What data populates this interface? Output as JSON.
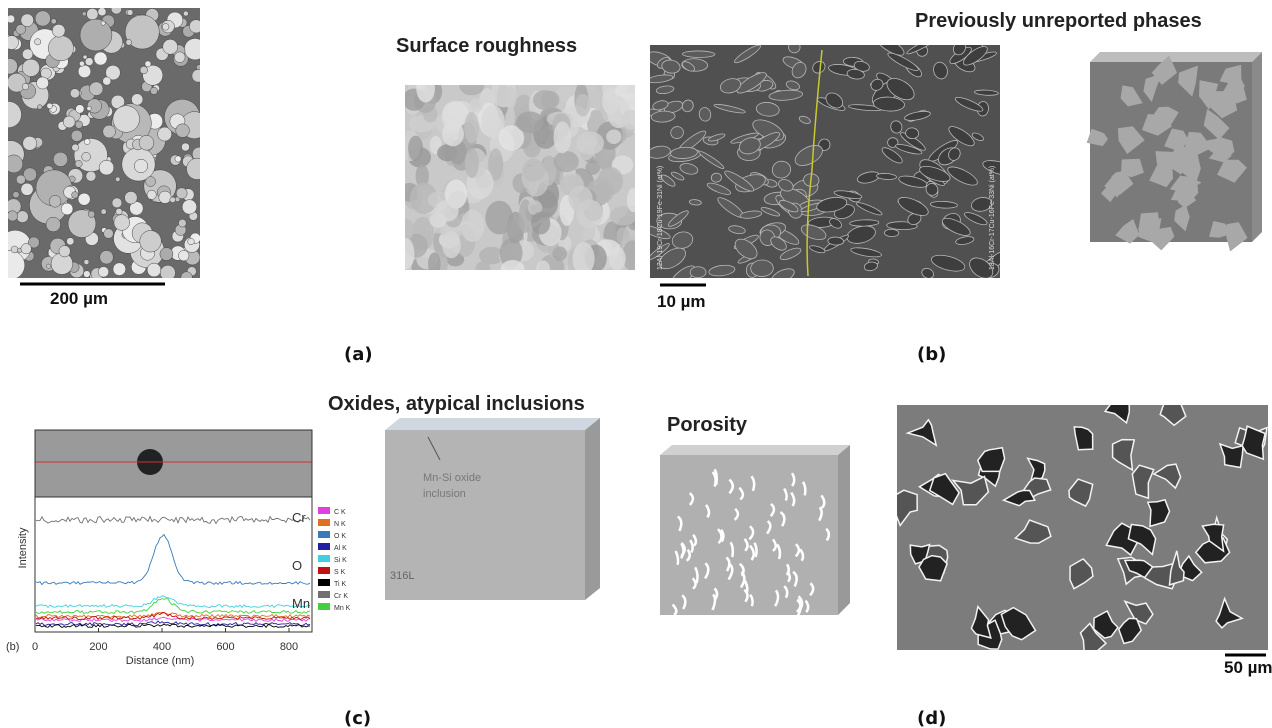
{
  "panels": [
    {
      "label": "(a)",
      "title": "Surface roughness",
      "scale_bar": "200 µm"
    },
    {
      "label": "(b)",
      "title": "Previously unreported phases",
      "scale_bar": "10 µm",
      "image_labels": [
        "12Al-19Cr-18Cu-19Fe-31Ni (at%)",
        "18Al-16Cr-17Cu-16Fe-33Ni (at%)"
      ]
    },
    {
      "label": "(c)",
      "title": "Oxides, atypical inclusions",
      "annotation": [
        "Mn-Si oxide",
        "inclusion"
      ],
      "material": "316L",
      "plot": {
        "sub_label": "(b)",
        "y_label": "Intensity",
        "x_label": "Distance (nm)",
        "x_ticks": [
          "0",
          "200",
          "400",
          "600",
          "800"
        ],
        "curve_labels": [
          "Cr",
          "O",
          "Mn"
        ],
        "legend": [
          {
            "name": "C K",
            "color": "#e040e0"
          },
          {
            "name": "N K",
            "color": "#e07020"
          },
          {
            "name": "O K",
            "color": "#3a7ab8"
          },
          {
            "name": "Al K",
            "color": "#2020a0"
          },
          {
            "name": "Si K",
            "color": "#40d0e0"
          },
          {
            "name": "S K",
            "color": "#c01010"
          },
          {
            "name": "Ti K",
            "color": "#000000"
          },
          {
            "name": "Cr K",
            "color": "#707070"
          },
          {
            "name": "Mn K",
            "color": "#40d040"
          }
        ]
      }
    },
    {
      "label": "(d)",
      "title": "Porosity",
      "scale_bar": "50 µm"
    }
  ]
}
